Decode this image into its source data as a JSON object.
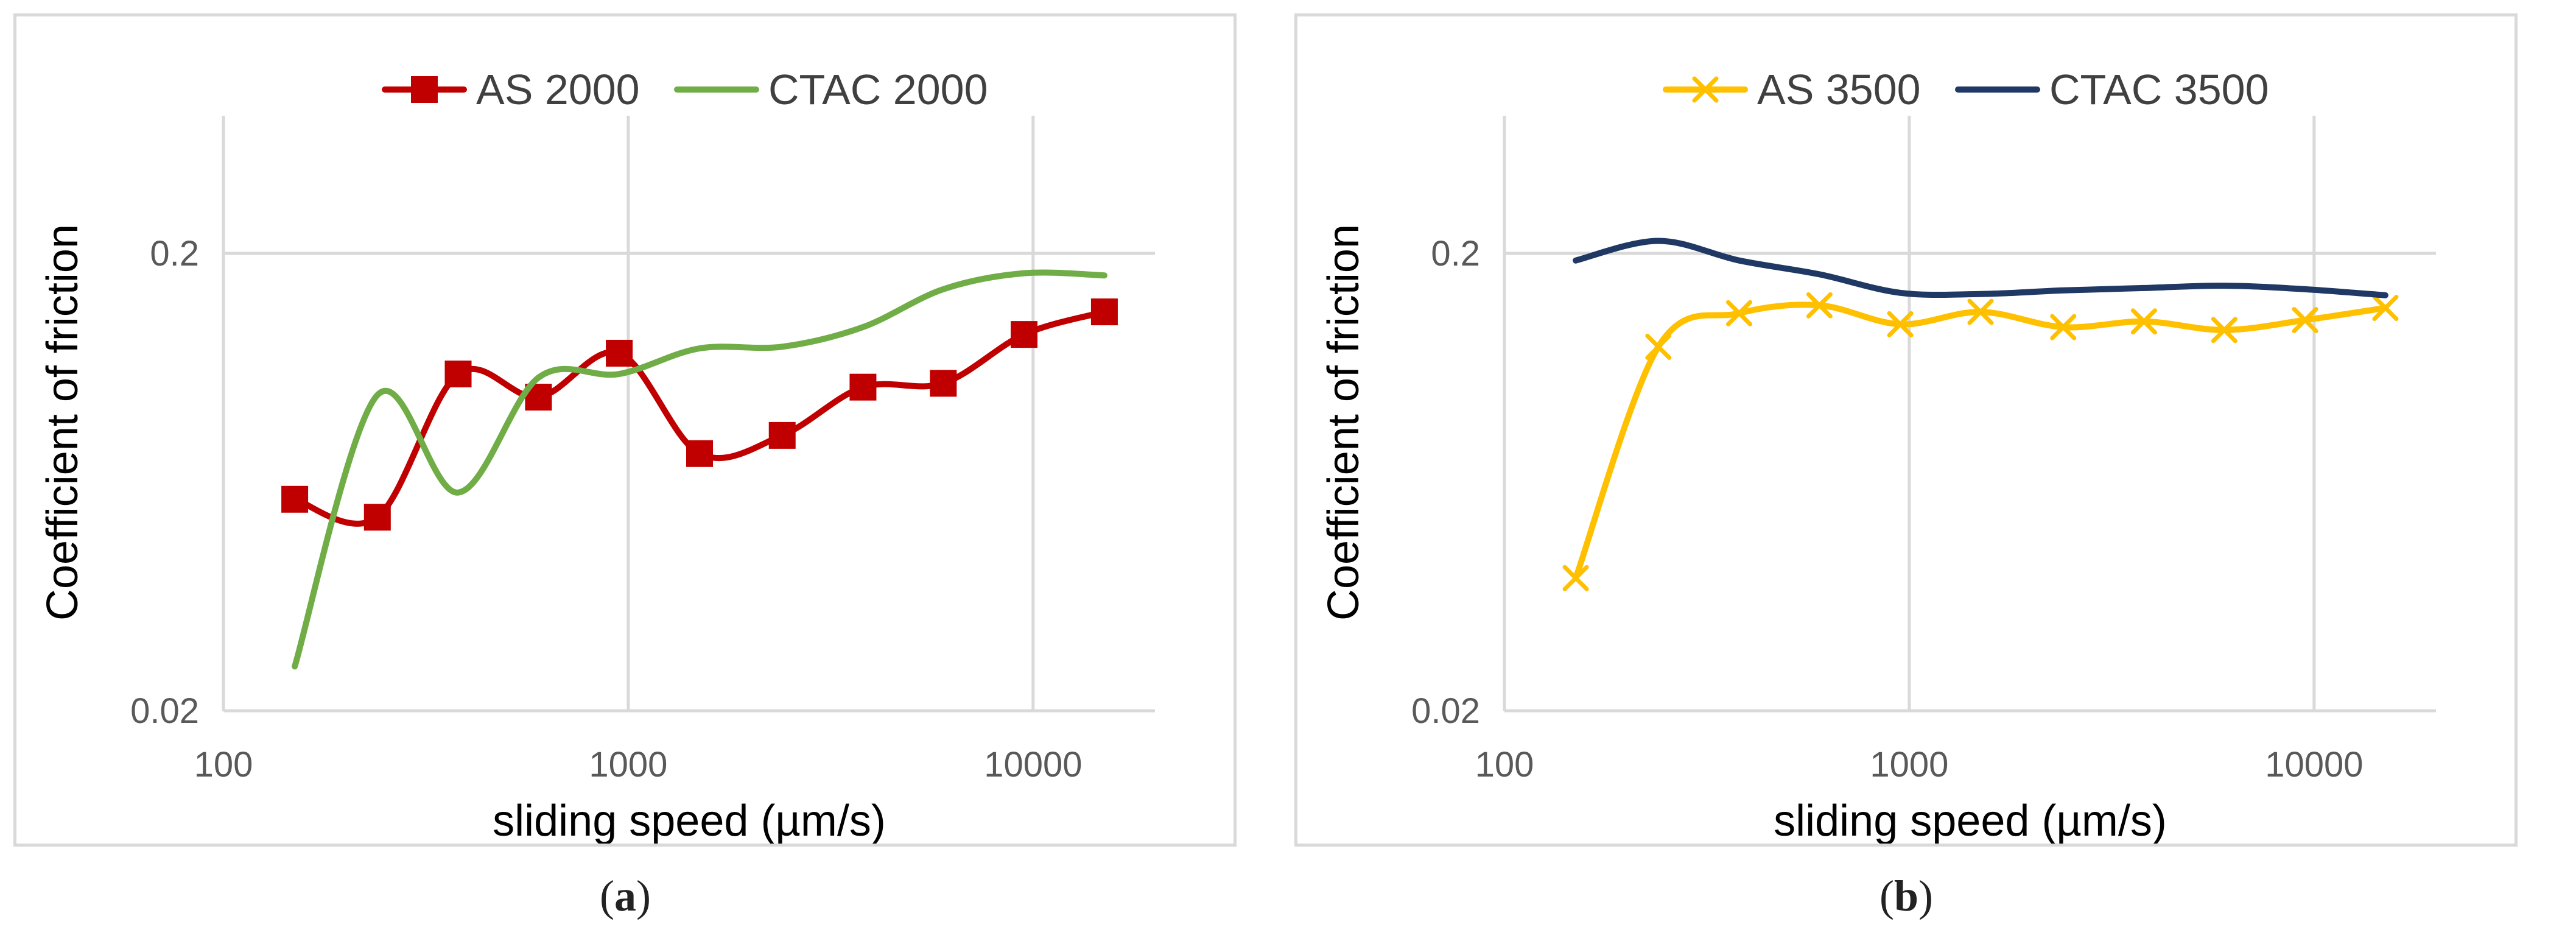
{
  "chart_data": [
    {
      "type": "line",
      "panel_label": "a",
      "xlabel": "sliding speed (µm/s)",
      "ylabel": "Coefficient of friction",
      "xscale": "log",
      "yscale": "log",
      "xlim": [
        100,
        20000
      ],
      "ylim": [
        0.02,
        0.4
      ],
      "xticks": [
        {
          "value": 100,
          "label": "100"
        },
        {
          "value": 1000,
          "label": "1000"
        },
        {
          "value": 10000,
          "label": "10000"
        }
      ],
      "yticks": [
        {
          "value": 0.02,
          "label": "0.02"
        },
        {
          "value": 0.2,
          "label": "0.2"
        }
      ],
      "grid": true,
      "legend": "top-center",
      "series": [
        {
          "name": "AS 2000",
          "color": "#c00000",
          "marker": "square",
          "x": [
            150,
            240,
            380,
            600,
            950,
            1500,
            2400,
            3800,
            6000,
            9500,
            15000
          ],
          "y": [
            0.058,
            0.053,
            0.109,
            0.097,
            0.121,
            0.073,
            0.08,
            0.102,
            0.104,
            0.133,
            0.149
          ]
        },
        {
          "name": "CTAC 2000",
          "color": "#70ad47",
          "marker": "none",
          "x": [
            150,
            240,
            380,
            600,
            950,
            1500,
            2400,
            3800,
            6000,
            9500,
            15000
          ],
          "y": [
            0.025,
            0.098,
            0.06,
            0.107,
            0.109,
            0.124,
            0.125,
            0.138,
            0.167,
            0.181,
            0.179
          ]
        }
      ]
    },
    {
      "type": "line",
      "panel_label": "b",
      "xlabel": "sliding speed (µm/s)",
      "ylabel": "Coefficient of friction",
      "xscale": "log",
      "yscale": "log",
      "xlim": [
        100,
        20000
      ],
      "ylim": [
        0.02,
        0.4
      ],
      "xticks": [
        {
          "value": 100,
          "label": "100"
        },
        {
          "value": 1000,
          "label": "1000"
        },
        {
          "value": 10000,
          "label": "10000"
        }
      ],
      "yticks": [
        {
          "value": 0.02,
          "label": "0.02"
        },
        {
          "value": 0.2,
          "label": "0.2"
        }
      ],
      "grid": true,
      "legend": "top-center",
      "series": [
        {
          "name": "AS 3500",
          "color": "#ffc000",
          "marker": "x",
          "x": [
            150,
            240,
            380,
            600,
            950,
            1500,
            2400,
            3800,
            6000,
            9500,
            15000
          ],
          "y": [
            0.039,
            0.125,
            0.148,
            0.154,
            0.14,
            0.149,
            0.138,
            0.142,
            0.136,
            0.143,
            0.152
          ]
        },
        {
          "name": "CTAC 3500",
          "color": "#203864",
          "marker": "none",
          "x": [
            150,
            240,
            380,
            600,
            950,
            1500,
            2400,
            3800,
            6000,
            9500,
            15000
          ],
          "y": [
            0.193,
            0.213,
            0.193,
            0.18,
            0.164,
            0.163,
            0.166,
            0.168,
            0.17,
            0.167,
            0.162
          ]
        }
      ]
    }
  ]
}
